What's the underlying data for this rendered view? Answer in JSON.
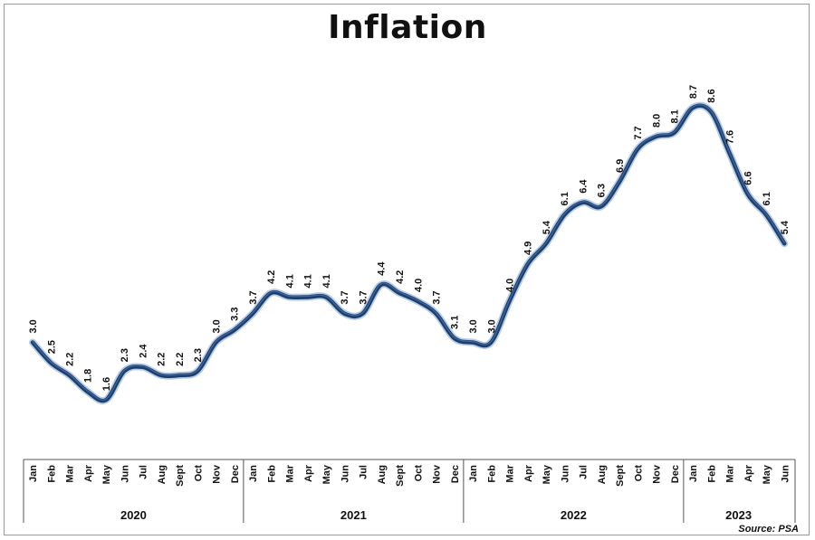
{
  "title": "Inflation",
  "source_note": "Source: PSA",
  "colors": {
    "line": "#1e3f6e",
    "line_glow": "#b8cce4",
    "drop_line": "#a9b8cc",
    "axis": "#555555"
  },
  "chart_data": {
    "type": "line",
    "title": "Inflation",
    "xlabel": "",
    "ylabel": "",
    "ylim": [
      0,
      10
    ],
    "grid": false,
    "legend": "none",
    "categories": [
      "Jan",
      "Feb",
      "Mar",
      "Apr",
      "May",
      "Jun",
      "Jul",
      "Aug",
      "Sept",
      "Oct",
      "Nov",
      "Dec",
      "Jan",
      "Feb",
      "Mar",
      "Apr",
      "May",
      "Jun",
      "Jul",
      "Aug",
      "Sept",
      "Oct",
      "Nov",
      "Dec",
      "Jan",
      "Feb",
      "Mar",
      "Apr",
      "May",
      "Jun",
      "Jul",
      "Aug",
      "Sept",
      "Oct",
      "Nov",
      "Dec",
      "Jan",
      "Feb",
      "Mar",
      "Apr",
      "May",
      "Jun"
    ],
    "values": [
      3.0,
      2.5,
      2.2,
      1.8,
      1.6,
      2.3,
      2.4,
      2.2,
      2.2,
      2.3,
      3.0,
      3.3,
      3.7,
      4.2,
      4.1,
      4.1,
      4.1,
      3.7,
      3.7,
      4.4,
      4.2,
      4.0,
      3.7,
      3.1,
      3.0,
      3.0,
      4.0,
      4.9,
      5.4,
      6.1,
      6.4,
      6.3,
      6.9,
      7.7,
      8.0,
      8.1,
      8.7,
      8.6,
      7.6,
      6.6,
      6.1,
      5.4
    ],
    "value_labels": [
      "3.0",
      "2.5",
      "2.2",
      "1.8",
      "1.6",
      "2.3",
      "2.4",
      "2.2",
      "2.2",
      "2.3",
      "3.0",
      "3.3",
      "3.7",
      "4.2",
      "4.1",
      "4.1",
      "4.1",
      "3.7",
      "3.7",
      "4.4",
      "4.2",
      "4.0",
      "3.7",
      "3.1",
      "3.0",
      "3.0",
      "4.0",
      "4.9",
      "5.4",
      "6.1",
      "6.4",
      "6.3",
      "6.9",
      "7.7",
      "8.0",
      "8.1",
      "8.7",
      "8.6",
      "7.6",
      "6.6",
      "6.1",
      "5.4"
    ],
    "year_groups": [
      {
        "label": "2020",
        "count": 12
      },
      {
        "label": "2021",
        "count": 12
      },
      {
        "label": "2022",
        "count": 12
      },
      {
        "label": "2023",
        "count": 6
      }
    ]
  }
}
